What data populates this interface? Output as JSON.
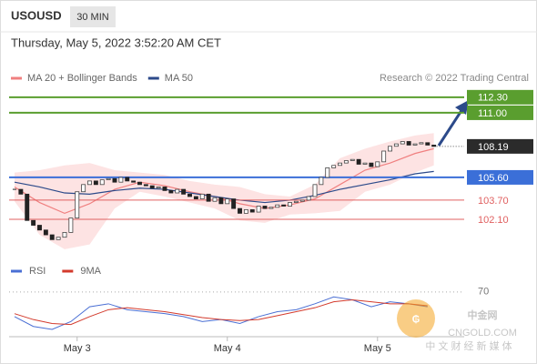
{
  "header": {
    "symbol": "USOUSD",
    "interval": "30 MIN",
    "datetime": "Thursday, May 5, 2022 3:52:20 AM CET",
    "source": "Research © 2022 Trading Central"
  },
  "chart_data": [
    {
      "type": "candlestick",
      "close": [
        104.6,
        104.2,
        102.0,
        101.6,
        101.2,
        100.8,
        100.4,
        100.6,
        101.0,
        102.2,
        104.4,
        105.0,
        105.3,
        105.0,
        105.4,
        105.5,
        105.2,
        105.6,
        105.3,
        105.2,
        105.0,
        104.9,
        104.7,
        104.8,
        104.5,
        104.3,
        104.6,
        104.2,
        104.0,
        103.8,
        104.2,
        103.6,
        103.9,
        103.4,
        103.8,
        103.0,
        102.6,
        102.9,
        102.7,
        103.2,
        103.0,
        103.1,
        103.3,
        103.2,
        103.5,
        103.6,
        103.7,
        104.0,
        105.0,
        105.6,
        106.4,
        106.6,
        106.8,
        107.0,
        107.1,
        106.7,
        106.8,
        106.5,
        106.9,
        107.8,
        108.2,
        108.4,
        108.6,
        108.3,
        108.4,
        108.5,
        108.3,
        108.19
      ],
      "up_color": "#444444",
      "down_color": "#222222",
      "series": [
        {
          "name": "MA 20 + Bollinger Bands",
          "color": "#f08080",
          "band_color": "#fde3e3",
          "x": [
            0,
            4,
            8,
            12,
            16,
            20,
            24,
            28,
            32,
            36,
            40,
            44,
            48,
            52,
            56,
            60,
            64,
            67
          ],
          "values": [
            104.8,
            103.5,
            102.6,
            103.4,
            104.6,
            105.2,
            104.9,
            104.4,
            104.0,
            103.4,
            103.0,
            103.3,
            103.8,
            105.0,
            106.2,
            106.8,
            107.6,
            108.0
          ],
          "upper": [
            106.0,
            106.2,
            106.6,
            106.8,
            106.2,
            106.0,
            105.8,
            105.3,
            105.0,
            104.8,
            104.2,
            104.0,
            105.0,
            107.2,
            108.0,
            108.6,
            109.1,
            109.3
          ],
          "lower": [
            103.6,
            100.8,
            99.6,
            100.0,
            103.0,
            104.4,
            104.0,
            103.5,
            103.0,
            102.0,
            101.8,
            102.5,
            102.6,
            102.8,
            104.4,
            105.0,
            106.0,
            106.6
          ]
        },
        {
          "name": "MA 50",
          "color": "#2c4a8a",
          "x": [
            0,
            4,
            8,
            12,
            16,
            20,
            24,
            28,
            32,
            36,
            40,
            44,
            48,
            52,
            56,
            60,
            64,
            67
          ],
          "values": [
            105.2,
            104.8,
            104.3,
            104.2,
            104.5,
            104.7,
            104.6,
            104.3,
            104.0,
            103.7,
            103.5,
            103.7,
            104.1,
            104.6,
            105.0,
            105.4,
            105.9,
            106.1
          ]
        }
      ],
      "levels": [
        {
          "value": {
            "value": 112.3,
            "label": "112.30"
          },
          "color": "#5a9e2f",
          "boxed": true
        },
        {
          "value": {
            "value": 111.0,
            "label": "111.00"
          },
          "color": "#5a9e2f",
          "boxed": true
        },
        {
          "value": {
            "value": 105.6,
            "label": "105.60"
          },
          "color": "#3b6fd8",
          "boxed": true
        },
        {
          "value": {
            "value": 103.7,
            "label": "103.70"
          },
          "color": "#e06060",
          "boxed": false
        },
        {
          "value": {
            "value": 102.1,
            "label": "102.10"
          },
          "color": "#e06060",
          "boxed": false
        }
      ],
      "current": 108.19,
      "current_color": "#2b2b2b",
      "xlim": [
        -0.87,
        71.85
      ],
      "ylim": [
        98.75,
        113.2
      ],
      "xticks": [
        {
          "value": 10,
          "label": "May 3"
        },
        {
          "value": 34,
          "label": "May 4"
        },
        {
          "value": 58,
          "label": "May 5"
        }
      ]
    },
    {
      "type": "line",
      "x": [
        0,
        3,
        6,
        9,
        12,
        15,
        18,
        21,
        24,
        27,
        30,
        33,
        36,
        39,
        42,
        45,
        48,
        51,
        54,
        57,
        60,
        63,
        66
      ],
      "series": [
        {
          "name": "RSI",
          "color": "#4a6fd4",
          "values": [
            45,
            35,
            32,
            40,
            55,
            58,
            52,
            50,
            48,
            45,
            40,
            42,
            38,
            45,
            50,
            52,
            58,
            65,
            62,
            55,
            60,
            58,
            55
          ]
        },
        {
          "name": "9MA",
          "color": "#d33a2c",
          "values": [
            48,
            42,
            38,
            37,
            45,
            52,
            54,
            52,
            50,
            47,
            44,
            42,
            41,
            42,
            46,
            50,
            54,
            60,
            62,
            60,
            58,
            58,
            56
          ]
        }
      ],
      "xlim": [
        -0.87,
        71.85
      ],
      "ylim": [
        20,
        80
      ],
      "yticks": [
        70
      ]
    }
  ],
  "watermark": {
    "name": "中金网",
    "site": "CNGOLD.COM",
    "slogan": "中 文 财 经 新 媒 体"
  }
}
